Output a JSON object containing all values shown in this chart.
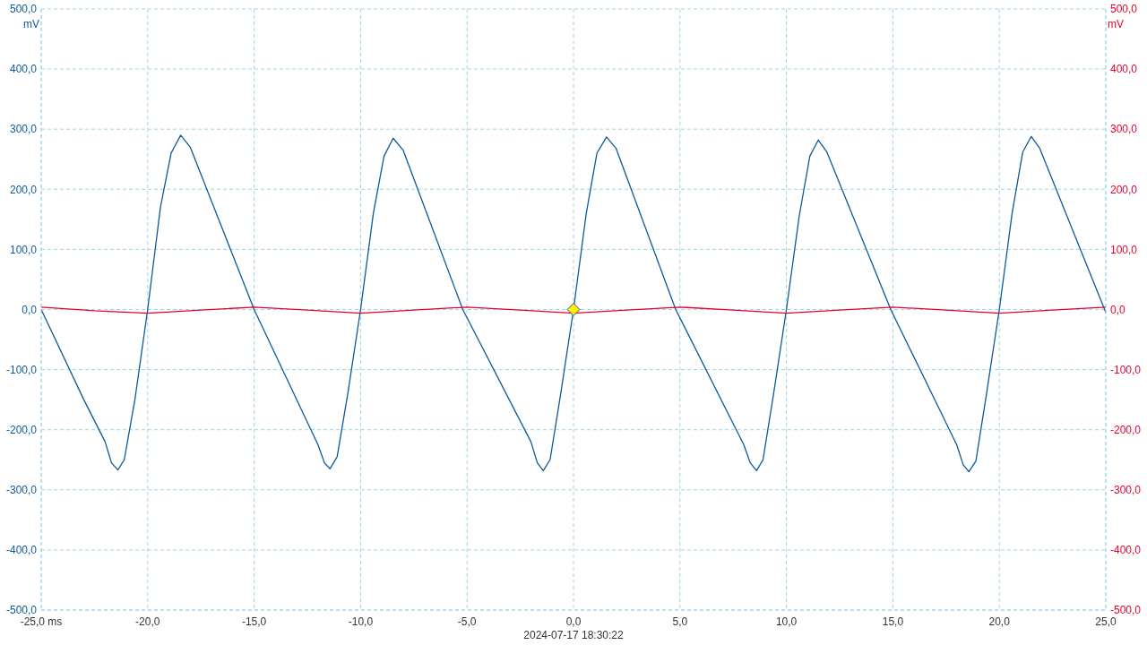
{
  "chart_data": {
    "type": "line",
    "annotations": [
      "2024-07-17 18:30:22"
    ],
    "ylabel": "mV",
    "y2label": "mV",
    "xlim": [
      -25,
      25
    ],
    "xticks": [
      {
        "value": -25,
        "label": "-25,0 ms"
      },
      {
        "value": -20,
        "label": "-20,0"
      },
      {
        "value": -15,
        "label": "-15,0"
      },
      {
        "value": -10,
        "label": "-10,0"
      },
      {
        "value": -5,
        "label": "-5,0"
      },
      {
        "value": 0,
        "label": "0,0"
      },
      {
        "value": 5,
        "label": "5,0"
      },
      {
        "value": 10,
        "label": "10,0"
      },
      {
        "value": 15,
        "label": "15,0"
      },
      {
        "value": 20,
        "label": "20,0"
      },
      {
        "value": 25,
        "label": "25,0"
      }
    ],
    "ylim": [
      -500,
      500
    ],
    "yticks": [
      {
        "value": -500,
        "label": "-500,0"
      },
      {
        "value": -400,
        "label": "-400,0"
      },
      {
        "value": -300,
        "label": "-300,0"
      },
      {
        "value": -200,
        "label": "-200,0"
      },
      {
        "value": -100,
        "label": "-100,0"
      },
      {
        "value": 0,
        "label": "0,0"
      },
      {
        "value": 100,
        "label": "100,0"
      },
      {
        "value": 200,
        "label": "200,0"
      },
      {
        "value": 300,
        "label": "300,0"
      },
      {
        "value": 400,
        "label": "400,0"
      },
      {
        "value": 500,
        "label": "500,0"
      }
    ],
    "y2lim": [
      -500,
      500
    ],
    "y2ticks": [
      {
        "value": -500,
        "label": "-500,0"
      },
      {
        "value": -400,
        "label": "-400,0"
      },
      {
        "value": -300,
        "label": "-300,0"
      },
      {
        "value": -200,
        "label": "-200,0"
      },
      {
        "value": -100,
        "label": "-100,0"
      },
      {
        "value": 0,
        "label": "0,0"
      },
      {
        "value": 100,
        "label": "100,0"
      },
      {
        "value": 200,
        "label": "200,0"
      },
      {
        "value": 300,
        "label": "300,0"
      },
      {
        "value": 400,
        "label": "400,0"
      },
      {
        "value": 500,
        "label": "500,0"
      }
    ],
    "grid": true,
    "marker": "none",
    "line_style": "solid",
    "series": [
      {
        "color": "#0b5a9c",
        "x": [
          -25,
          -23,
          -22,
          -21.7,
          -21.4,
          -21.1,
          -20.6,
          -20,
          -19.4,
          -18.9,
          -18.45,
          -18,
          -15,
          -12,
          -11.7,
          -11.44,
          -11.1,
          -10.6,
          -10,
          -9.4,
          -8.9,
          -8.47,
          -8,
          -5.2,
          -2,
          -1.7,
          -1.42,
          -1.1,
          -0.6,
          0,
          0.6,
          1.1,
          1.55,
          2,
          4.8,
          8,
          8.3,
          8.6,
          8.9,
          9.4,
          10,
          10.6,
          11.1,
          11.5,
          11.9,
          14.9,
          18,
          18.3,
          18.57,
          18.9,
          19.4,
          20,
          20.6,
          21.1,
          21.5,
          21.9,
          25
        ],
        "values": [
          0,
          -150,
          -220,
          -255,
          -267,
          -250,
          -150,
          0,
          170,
          260,
          290,
          270,
          0,
          -225,
          -255,
          -265,
          -245,
          -140,
          0,
          160,
          255,
          285,
          265,
          0,
          -220,
          -255,
          -268,
          -250,
          -140,
          0,
          160,
          260,
          287,
          268,
          0,
          -225,
          -255,
          -268,
          -250,
          -140,
          0,
          155,
          255,
          282,
          262,
          0,
          -225,
          -258,
          -270,
          -252,
          -140,
          0,
          160,
          262,
          288,
          268,
          -5
        ]
      },
      {
        "color": "#e8002a",
        "axis": "y2",
        "x": [
          -25,
          -22.5,
          -20,
          -17.5,
          -15,
          -12.5,
          -10,
          -7.5,
          -5,
          -2.5,
          0,
          2.5,
          5,
          7.5,
          10,
          12.5,
          15,
          17.5,
          20,
          22.5,
          25
        ],
        "values": [
          4,
          -2,
          -6,
          -1,
          4,
          -1,
          -6,
          -1,
          4,
          -1,
          -6,
          -1,
          4,
          -1,
          -6,
          -1,
          4,
          -1,
          -6,
          -1,
          4
        ]
      }
    ]
  }
}
